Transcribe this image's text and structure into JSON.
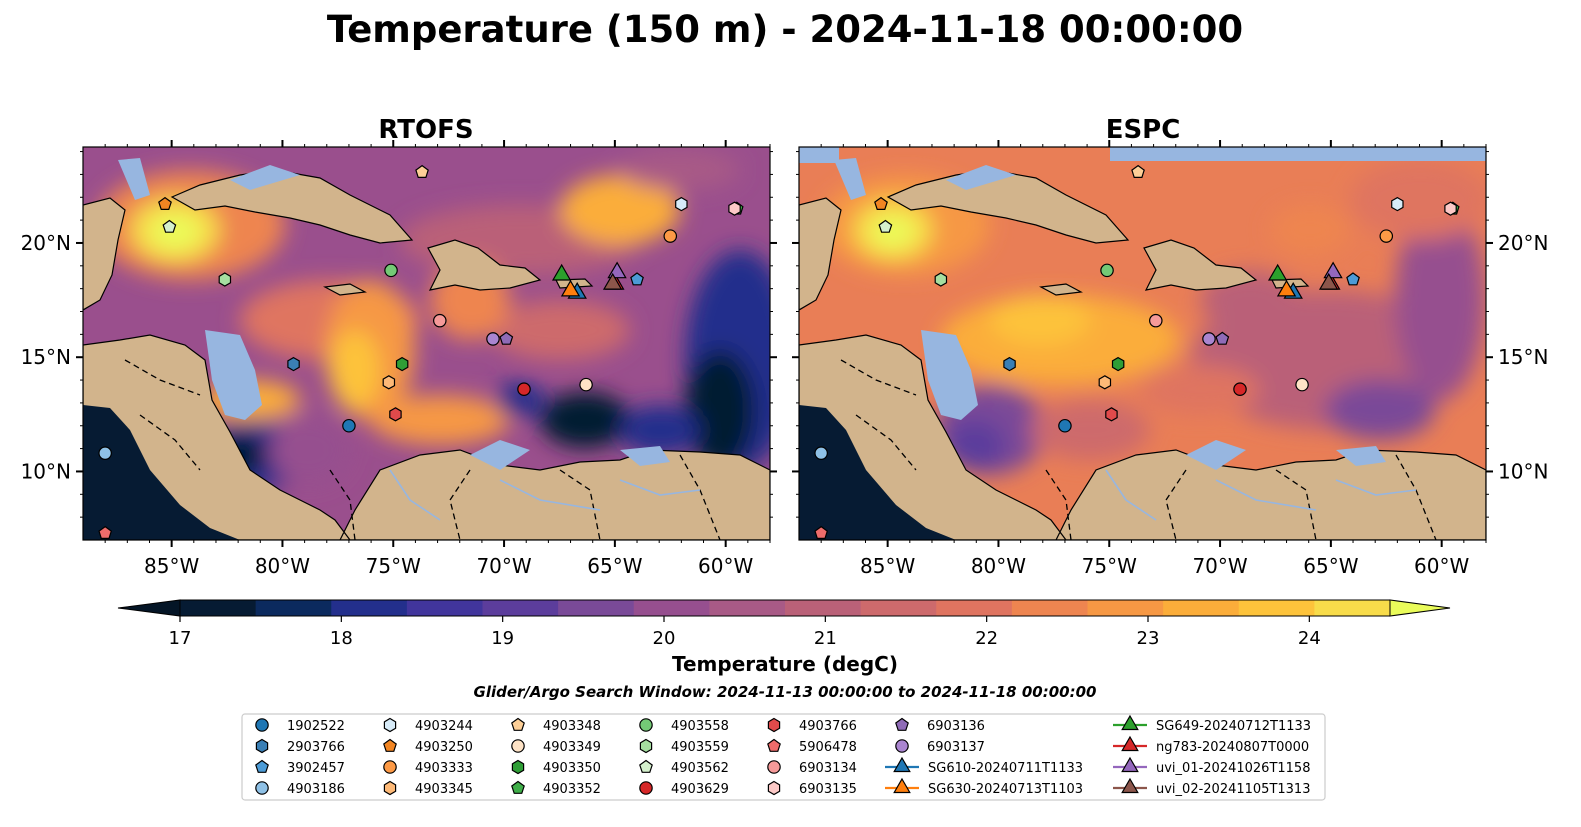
{
  "figure": {
    "title": "Temperature (150 m) - 2024-11-18 00:00:00",
    "window_note": "Glider/Argo Search Window: 2024-11-13 00:00:00 to 2024-11-18 00:00:00"
  },
  "map_extent": {
    "lon": [
      -89,
      -58
    ],
    "lat": [
      7,
      24.2
    ]
  },
  "panels": [
    {
      "id": "rtofs",
      "title": "RTOFS",
      "lat_labels_side": "left"
    },
    {
      "id": "espc",
      "title": "ESPC",
      "lat_labels_side": "right"
    }
  ],
  "lon_ticks": [
    {
      "value": -85,
      "label": "85°W"
    },
    {
      "value": -80,
      "label": "80°W"
    },
    {
      "value": -75,
      "label": "75°W"
    },
    {
      "value": -70,
      "label": "70°W"
    },
    {
      "value": -65,
      "label": "65°W"
    },
    {
      "value": -60,
      "label": "60°W"
    }
  ],
  "lat_ticks": [
    {
      "value": 10,
      "label": "10°N"
    },
    {
      "value": 15,
      "label": "15°N"
    },
    {
      "value": 20,
      "label": "20°N"
    }
  ],
  "colorbar": {
    "label": "Temperature (degC)",
    "min": 16.625,
    "max": 24.5,
    "step": 0.25,
    "ticks": [
      "17",
      "18",
      "19",
      "20",
      "21",
      "22",
      "23",
      "24"
    ],
    "tick_values": [
      17,
      18,
      19,
      20,
      21,
      22,
      23,
      24
    ],
    "colors": [
      "#061b33",
      "#0b2a5e",
      "#232f8c",
      "#41359c",
      "#5c3d9c",
      "#7a4a98",
      "#964f8f",
      "#a85a86",
      "#ba6178",
      "#cd6a6c",
      "#df7460",
      "#ee8550",
      "#f69844",
      "#fbad3a",
      "#fdc33b",
      "#f8dc4a"
    ],
    "under_color": "#041526",
    "over_color": "#eafc5a"
  },
  "colors": {
    "land": "#d2b48c",
    "shelf": "#97b6e0",
    "coast": "#000000",
    "border": "#000000",
    "river": "#97b6e0",
    "rtofs_bg": "#9a4f8d",
    "espc_bg": "#e97e56"
  },
  "legend": {
    "entries": [
      {
        "label": "1902522",
        "marker": "circle",
        "color": "#1f77b4",
        "lon": -77.0,
        "lat": 12.0
      },
      {
        "label": "2903766",
        "marker": "hexagon",
        "color": "#3a7fb5",
        "lon": -79.5,
        "lat": 14.7
      },
      {
        "label": "3902457",
        "marker": "pentagon",
        "color": "#4c9bd6",
        "lon": -64.0,
        "lat": 18.4
      },
      {
        "label": "4903186",
        "marker": "circle",
        "color": "#8fc1e6",
        "lon": -88.0,
        "lat": 10.8
      },
      {
        "label": "4903244",
        "marker": "hexagon",
        "color": "#d7ebf8",
        "lon": -62.0,
        "lat": 21.7
      },
      {
        "label": "4903250",
        "marker": "pentagon",
        "color": "#f28522",
        "lon": -85.3,
        "lat": 21.7
      },
      {
        "label": "4903333",
        "marker": "circle",
        "color": "#fd9a46",
        "lon": -62.5,
        "lat": 20.3
      },
      {
        "label": "4903345",
        "marker": "hexagon",
        "color": "#fdb977",
        "lon": -75.2,
        "lat": 13.9
      },
      {
        "label": "4903348",
        "marker": "pentagon",
        "color": "#fdcf97",
        "lon": -73.7,
        "lat": 23.1
      },
      {
        "label": "4903349",
        "marker": "circle",
        "color": "#fee3c6",
        "lon": -66.3,
        "lat": 13.8
      },
      {
        "label": "4903350",
        "marker": "hexagon",
        "color": "#2f9e36",
        "lon": -74.6,
        "lat": 14.7
      },
      {
        "label": "4903352",
        "marker": "pentagon",
        "color": "#3fae49",
        "lon": -59.5,
        "lat": 21.5
      },
      {
        "label": "4903558",
        "marker": "circle",
        "color": "#74c976",
        "lon": -75.1,
        "lat": 18.8
      },
      {
        "label": "4903559",
        "marker": "hexagon",
        "color": "#a6dea0",
        "lon": -82.6,
        "lat": 18.4
      },
      {
        "label": "4903562",
        "marker": "pentagon",
        "color": "#d4f0cc",
        "lon": -85.1,
        "lat": 20.7
      },
      {
        "label": "4903629",
        "marker": "circle",
        "color": "#d62728",
        "lon": -69.1,
        "lat": 13.6
      },
      {
        "label": "4903766",
        "marker": "hexagon",
        "color": "#e04a4b",
        "lon": -74.9,
        "lat": 12.5
      },
      {
        "label": "5906478",
        "marker": "pentagon",
        "color": "#ee6c6b",
        "lon": -88.0,
        "lat": 7.3
      },
      {
        "label": "6903134",
        "marker": "circle",
        "color": "#f59a99",
        "lon": -72.9,
        "lat": 16.6
      },
      {
        "label": "6903135",
        "marker": "hexagon",
        "color": "#fcc9c7",
        "lon": -59.6,
        "lat": 21.5
      },
      {
        "label": "6903136",
        "marker": "pentagon",
        "color": "#8f6bb7",
        "lon": -69.9,
        "lat": 15.8
      },
      {
        "label": "6903137",
        "marker": "circle",
        "color": "#aa85d0",
        "lon": -70.5,
        "lat": 15.8
      },
      {
        "label": "SG610-20240711T1133",
        "marker": "triangle",
        "color": "#1f77b4",
        "track": true,
        "lon": -66.7,
        "lat": 17.8
      },
      {
        "label": "SG630-20240713T1103",
        "marker": "triangle",
        "color": "#ff7f0e",
        "track": true,
        "lon": -67.0,
        "lat": 17.9
      },
      {
        "label": "SG649-20240712T1133",
        "marker": "triangle",
        "color": "#2ca02c",
        "track": true,
        "lon": -67.4,
        "lat": 18.6
      },
      {
        "label": "ng783-20240807T0000",
        "marker": "triangle",
        "color": "#d62728",
        "track": true,
        "lon": -65.0,
        "lat": 18.2
      },
      {
        "label": "uvi_01-20241026T1158",
        "marker": "triangle",
        "color": "#9467bd",
        "track": true,
        "lon": -64.9,
        "lat": 18.7
      },
      {
        "label": "uvi_02-20241105T1313",
        "marker": "triangle",
        "color": "#8c564b",
        "track": true,
        "lon": -65.1,
        "lat": 18.2
      }
    ]
  }
}
